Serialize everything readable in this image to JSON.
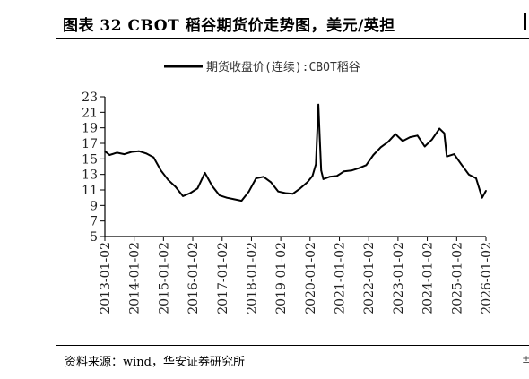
{
  "header": {
    "title": "图表 32 CBOT 稻谷期货价走势图，美元/英担"
  },
  "footer": {
    "source": "资料来源：wind，华安证券研究所"
  },
  "colors": {
    "line": "#000000",
    "axis": "#000000",
    "background": "#ffffff"
  },
  "chart_data": {
    "type": "line",
    "title": "",
    "xlabel": "",
    "ylabel": "",
    "legend": "top-center",
    "grid": false,
    "ylim": [
      5,
      23
    ],
    "yticks": [
      5,
      7,
      9,
      11,
      13,
      15,
      17,
      19,
      21,
      23
    ],
    "xlim": [
      "2013-01-02",
      "2026-01-02"
    ],
    "xticks": [
      "2013-01-02",
      "2014-01-02",
      "2015-01-02",
      "2016-01-02",
      "2017-01-02",
      "2018-01-02",
      "2019-01-02",
      "2020-01-02",
      "2021-01-02",
      "2022-01-02",
      "2023-01-02",
      "2024-01-02",
      "2025-01-02",
      "2026-01-02"
    ],
    "series": [
      {
        "name": "期货收盘价(连续):CBOT稻谷",
        "x": [
          "2013-01-02",
          "2013-03-01",
          "2013-06-01",
          "2013-09-01",
          "2013-12-01",
          "2014-03-01",
          "2014-06-01",
          "2014-09-01",
          "2014-12-01",
          "2015-03-01",
          "2015-06-01",
          "2015-09-01",
          "2015-12-01",
          "2016-03-01",
          "2016-06-01",
          "2016-09-01",
          "2016-12-01",
          "2017-03-01",
          "2017-06-01",
          "2017-09-01",
          "2017-12-01",
          "2018-03-01",
          "2018-06-01",
          "2018-09-01",
          "2018-12-01",
          "2019-03-01",
          "2019-06-01",
          "2019-09-01",
          "2019-12-01",
          "2020-02-01",
          "2020-03-15",
          "2020-04-15",
          "2020-05-01",
          "2020-05-20",
          "2020-06-15",
          "2020-09-01",
          "2020-12-01",
          "2021-03-01",
          "2021-06-01",
          "2021-09-01",
          "2021-12-01",
          "2022-03-01",
          "2022-06-01",
          "2022-09-01",
          "2022-12-01",
          "2023-03-01",
          "2023-06-01",
          "2023-09-01",
          "2023-12-01",
          "2024-03-01",
          "2024-06-01",
          "2024-08-01",
          "2024-09-01",
          "2024-12-01",
          "2025-03-01",
          "2025-06-01",
          "2025-09-01",
          "2025-11-15",
          "2026-01-02"
        ],
        "values": [
          16.0,
          15.5,
          15.8,
          15.6,
          15.9,
          16.0,
          15.7,
          15.2,
          13.5,
          12.3,
          11.4,
          10.2,
          10.6,
          11.2,
          13.2,
          11.5,
          10.3,
          10.0,
          9.8,
          9.6,
          10.8,
          12.5,
          12.7,
          12.0,
          10.8,
          10.6,
          10.5,
          11.2,
          12.0,
          12.8,
          14.3,
          22.0,
          18.0,
          13.5,
          12.4,
          12.7,
          12.8,
          13.4,
          13.5,
          13.8,
          14.2,
          15.5,
          16.5,
          17.2,
          18.2,
          17.3,
          17.8,
          18.0,
          16.6,
          17.5,
          18.9,
          18.3,
          15.3,
          15.6,
          14.3,
          13.0,
          12.5,
          10.0,
          10.9
        ]
      }
    ]
  }
}
